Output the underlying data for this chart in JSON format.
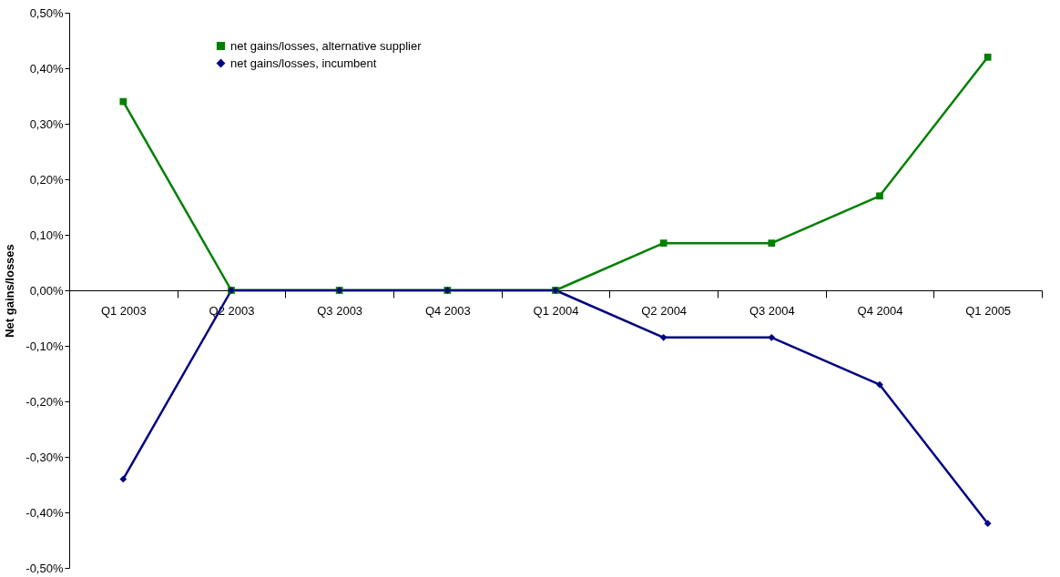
{
  "chart_data": {
    "type": "line",
    "ylabel": "Net gains/losses",
    "categories": [
      "Q1 2003",
      "Q2 2003",
      "Q3 2003",
      "Q4 2003",
      "Q1 2004",
      "Q2 2004",
      "Q3 2004",
      "Q4 2004",
      "Q1 2005"
    ],
    "series": [
      {
        "name": "net gains/losses, alternative supplier",
        "color": "#008000",
        "marker": "square",
        "values": [
          0.34,
          0,
          0,
          0,
          0,
          0.085,
          0.085,
          0.17,
          0.42
        ]
      },
      {
        "name": "net gains/losses, incumbent",
        "color": "#000080",
        "marker": "diamond",
        "values": [
          -0.34,
          0,
          0,
          0,
          0,
          -0.085,
          -0.085,
          -0.17,
          -0.42
        ]
      }
    ],
    "ylim": [
      -0.5,
      0.5
    ],
    "yticks": [
      {
        "value": -0.5,
        "label": "-0,50%"
      },
      {
        "value": -0.4,
        "label": "-0,40%"
      },
      {
        "value": -0.3,
        "label": "-0,30%"
      },
      {
        "value": -0.2,
        "label": "-0,20%"
      },
      {
        "value": -0.1,
        "label": "-0,10%"
      },
      {
        "value": 0,
        "label": "0,00%"
      },
      {
        "value": 0.1,
        "label": "0,10%"
      },
      {
        "value": 0.2,
        "label": "0,20%"
      },
      {
        "value": 0.3,
        "label": "0,30%"
      },
      {
        "value": 0.4,
        "label": "0,40%"
      },
      {
        "value": 0.5,
        "label": "0,50%"
      }
    ],
    "grid": false,
    "legend": "top left",
    "line_style": "solid"
  }
}
